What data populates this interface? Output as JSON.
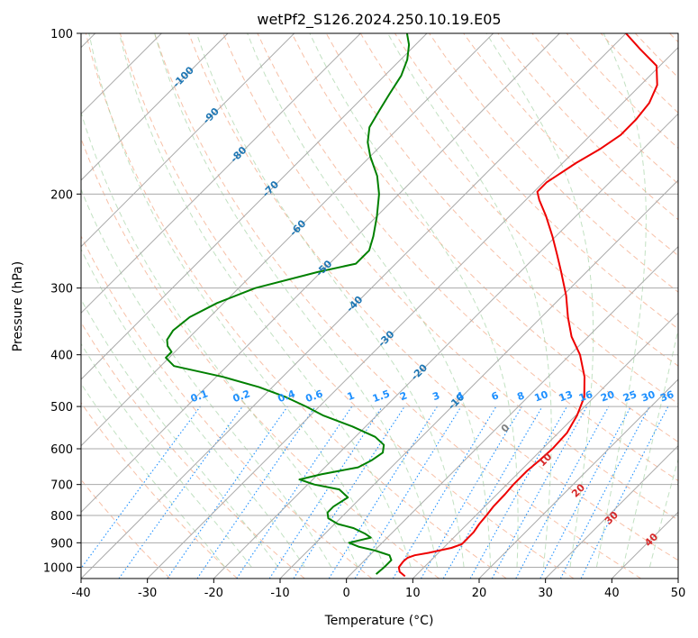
{
  "chart_data": {
    "type": "line",
    "title": "wetPf2_S126.2024.250.10.19.E05",
    "xlabel": "Temperature (°C)",
    "ylabel": "Pressure (hPa)",
    "xlim": [
      -40,
      50
    ],
    "ylim": [
      1050,
      100
    ],
    "yscale": "log",
    "skew": true,
    "grid": true,
    "x_ticks": [
      -40,
      -30,
      -20,
      -10,
      0,
      10,
      20,
      30,
      40,
      50
    ],
    "y_ticks": [
      100,
      200,
      300,
      400,
      500,
      600,
      700,
      800,
      900,
      1000
    ],
    "series": [
      {
        "role": "temperature",
        "color": "#ee0000",
        "points": [
          [
            1040,
            8.5
          ],
          [
            1020,
            7.0
          ],
          [
            1000,
            6.2
          ],
          [
            975,
            6.0
          ],
          [
            960,
            6.1
          ],
          [
            950,
            6.8
          ],
          [
            940,
            8.5
          ],
          [
            920,
            11.2
          ],
          [
            905,
            12.2
          ],
          [
            890,
            12.2
          ],
          [
            860,
            12.2
          ],
          [
            830,
            11.8
          ],
          [
            800,
            11.6
          ],
          [
            770,
            11.3
          ],
          [
            730,
            11.2
          ],
          [
            700,
            11.0
          ],
          [
            660,
            11.0
          ],
          [
            630,
            11.3
          ],
          [
            600,
            11.5
          ],
          [
            560,
            11.3
          ],
          [
            520,
            10.2
          ],
          [
            480,
            8.5
          ],
          [
            440,
            5.5
          ],
          [
            400,
            1.5
          ],
          [
            370,
            -2.5
          ],
          [
            340,
            -6.0
          ],
          [
            310,
            -9.5
          ],
          [
            280,
            -13.8
          ],
          [
            260,
            -17.0
          ],
          [
            240,
            -20.5
          ],
          [
            220,
            -24.5
          ],
          [
            205,
            -28.0
          ],
          [
            198,
            -29.5
          ],
          [
            190,
            -29.5
          ],
          [
            185,
            -29.0
          ],
          [
            175,
            -28.0
          ],
          [
            165,
            -26.5
          ],
          [
            155,
            -25.5
          ],
          [
            145,
            -25.5
          ],
          [
            135,
            -26.0
          ],
          [
            125,
            -27.5
          ],
          [
            115,
            -30.5
          ],
          [
            107,
            -35.5
          ],
          [
            100,
            -40.0
          ]
        ]
      },
      {
        "role": "dewpoint",
        "color": "#008000",
        "points": [
          [
            1030,
            3.8
          ],
          [
            1000,
            4.0
          ],
          [
            970,
            4.0
          ],
          [
            950,
            3.0
          ],
          [
            940,
            1.5
          ],
          [
            930,
            0.0
          ],
          [
            915,
            -3.0
          ],
          [
            900,
            -5.0
          ],
          [
            880,
            -2.5
          ],
          [
            865,
            -4.0
          ],
          [
            845,
            -6.5
          ],
          [
            830,
            -9.5
          ],
          [
            810,
            -11.8
          ],
          [
            790,
            -12.8
          ],
          [
            770,
            -12.8
          ],
          [
            740,
            -12.0
          ],
          [
            715,
            -14.5
          ],
          [
            700,
            -19.0
          ],
          [
            685,
            -22.0
          ],
          [
            670,
            -19.5
          ],
          [
            650,
            -15.0
          ],
          [
            630,
            -14.0
          ],
          [
            610,
            -13.5
          ],
          [
            590,
            -14.5
          ],
          [
            570,
            -17.0
          ],
          [
            545,
            -22.0
          ],
          [
            520,
            -28.0
          ],
          [
            500,
            -32.0
          ],
          [
            480,
            -36.5
          ],
          [
            460,
            -42.0
          ],
          [
            440,
            -49.0
          ],
          [
            420,
            -58.0
          ],
          [
            405,
            -60.5
          ],
          [
            395,
            -60.5
          ],
          [
            385,
            -62.0
          ],
          [
            375,
            -63.0
          ],
          [
            360,
            -63.5
          ],
          [
            340,
            -63.0
          ],
          [
            320,
            -61.0
          ],
          [
            300,
            -57.5
          ],
          [
            280,
            -50.5
          ],
          [
            270,
            -46.0
          ],
          [
            255,
            -46.0
          ],
          [
            240,
            -47.5
          ],
          [
            220,
            -50.0
          ],
          [
            200,
            -53.0
          ],
          [
            185,
            -56.0
          ],
          [
            170,
            -60.0
          ],
          [
            160,
            -62.5
          ],
          [
            150,
            -64.5
          ],
          [
            140,
            -65.5
          ],
          [
            130,
            -66.5
          ],
          [
            120,
            -67.5
          ],
          [
            112,
            -69.0
          ],
          [
            105,
            -71.0
          ],
          [
            100,
            -73.0
          ]
        ]
      }
    ],
    "isotherm_labels": [
      {
        "text": "-100",
        "t": -100,
        "p": 121
      },
      {
        "text": "-90",
        "t": -90,
        "p": 143
      },
      {
        "text": "-80",
        "t": -80,
        "p": 169
      },
      {
        "text": "-70",
        "t": -70,
        "p": 196
      },
      {
        "text": "-60",
        "t": -60,
        "p": 232
      },
      {
        "text": "-50",
        "t": -50,
        "p": 276
      },
      {
        "text": "-40",
        "t": -40,
        "p": 322
      },
      {
        "text": "-30",
        "t": -30,
        "p": 374
      },
      {
        "text": "-20",
        "t": -20,
        "p": 432
      },
      {
        "text": "-10",
        "t": -10,
        "p": 490
      }
    ],
    "isotherm_label_color": "#1f77b4",
    "mixing_ratio_labels": [
      "0.1",
      "0.2",
      "0.4",
      "0.6",
      "1",
      "1.5",
      "2",
      "3",
      "4",
      "6",
      "8",
      "10",
      "13",
      "16",
      "20",
      "25",
      "30",
      "36"
    ],
    "mixing_ratio_color": "#1e90ff",
    "moist_adiabat_labels": [
      {
        "text": "0",
        "color": "#808080"
      },
      {
        "text": "10",
        "color": "#d62728"
      },
      {
        "text": "20",
        "color": "#d62728"
      },
      {
        "text": "30",
        "color": "#d62728"
      },
      {
        "text": "40",
        "color": "#d62728"
      }
    ]
  }
}
